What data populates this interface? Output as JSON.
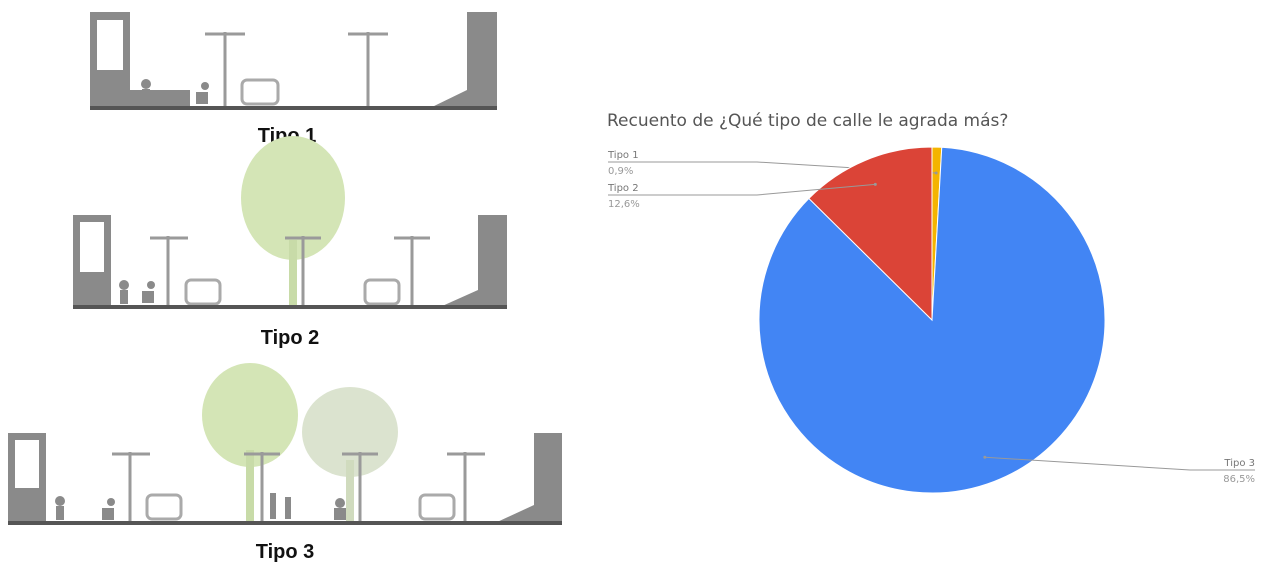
{
  "street_sections": [
    "Tipo 1",
    "Tipo 2",
    "Tipo 3"
  ],
  "chart_data": {
    "type": "pie",
    "title": "Recuento de ¿Qué tipo de calle le agrada más?",
    "categories": [
      "Tipo 1",
      "Tipo 3",
      "Tipo 2"
    ],
    "values": [
      0.9,
      86.5,
      12.6
    ],
    "value_labels": [
      "0,9%",
      "86,5%",
      "12,6%"
    ],
    "colors": [
      "#f4b400",
      "#4285f4",
      "#db4437"
    ]
  }
}
